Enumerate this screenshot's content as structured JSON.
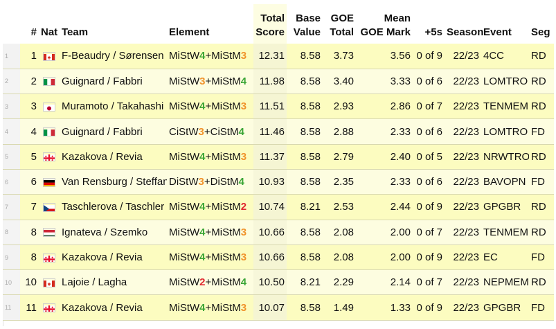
{
  "columns": {
    "rank": "#",
    "nat": "Nat",
    "team": "Team",
    "element": "Element",
    "total_line1": "Total",
    "total_line2": "Score",
    "base_line1": "Base",
    "base_line2": "Value",
    "goe_line1": "GOE",
    "goe_line2": "Total",
    "mean_line1": "Mean",
    "mean_line2": "GOE Mark",
    "plus5": "+5s",
    "season": "Season",
    "event": "Event",
    "seg": "Seg"
  },
  "rows": [
    {
      "idx": "1",
      "rank": "1",
      "nat": "CAN",
      "team": "F-Beaudry / Sørensen",
      "el1": "MiStW",
      "l1": "4",
      "el2": "MiStM",
      "l2": "3",
      "total": "12.31",
      "base": "8.58",
      "goe": "3.73",
      "mean": "3.56",
      "plus5": "0 of 9",
      "season": "22/23",
      "event": "4CC",
      "seg": "RD"
    },
    {
      "idx": "2",
      "rank": "2",
      "nat": "ITA",
      "team": "Guignard / Fabbri",
      "el1": "MiStW",
      "l1": "3",
      "el2": "MiStM",
      "l2": "4",
      "total": "11.98",
      "base": "8.58",
      "goe": "3.40",
      "mean": "3.33",
      "plus5": "0 of 6",
      "season": "22/23",
      "event": "LOMTRO",
      "seg": "RD"
    },
    {
      "idx": "3",
      "rank": "3",
      "nat": "JPN",
      "team": "Muramoto / Takahashi",
      "el1": "MiStW",
      "l1": "4",
      "el2": "MiStM",
      "l2": "3",
      "total": "11.51",
      "base": "8.58",
      "goe": "2.93",
      "mean": "2.86",
      "plus5": "0 of 7",
      "season": "22/23",
      "event": "TENMEM",
      "seg": "RD"
    },
    {
      "idx": "4",
      "rank": "4",
      "nat": "ITA",
      "team": "Guignard / Fabbri",
      "el1": "CiStW",
      "l1": "3",
      "el2": "CiStM",
      "l2": "4",
      "total": "11.46",
      "base": "8.58",
      "goe": "2.88",
      "mean": "2.33",
      "plus5": "0 of 6",
      "season": "22/23",
      "event": "LOMTRO",
      "seg": "FD"
    },
    {
      "idx": "5",
      "rank": "5",
      "nat": "GEO",
      "team": "Kazakova / Revia",
      "el1": "MiStW",
      "l1": "4",
      "el2": "MiStM",
      "l2": "3",
      "total": "11.37",
      "base": "8.58",
      "goe": "2.79",
      "mean": "2.40",
      "plus5": "0 of 5",
      "season": "22/23",
      "event": "NRWTRO",
      "seg": "RD"
    },
    {
      "idx": "6",
      "rank": "6",
      "nat": "GER",
      "team": "Van Rensburg / Steffan",
      "el1": "DiStW",
      "l1": "3",
      "el2": "DiStM",
      "l2": "4",
      "total": "10.93",
      "base": "8.58",
      "goe": "2.35",
      "mean": "2.33",
      "plus5": "0 of 6",
      "season": "22/23",
      "event": "BAVOPN",
      "seg": "FD"
    },
    {
      "idx": "7",
      "rank": "7",
      "nat": "CZE",
      "team": "Taschlerova / Taschler",
      "el1": "MiStW",
      "l1": "4",
      "el2": "MiStM",
      "l2": "2",
      "total": "10.74",
      "base": "8.21",
      "goe": "2.53",
      "mean": "2.44",
      "plus5": "0 of 9",
      "season": "22/23",
      "event": "GPGBR",
      "seg": "RD"
    },
    {
      "idx": "8",
      "rank": "8",
      "nat": "HUN",
      "team": "Ignateva / Szemko",
      "el1": "MiStW",
      "l1": "4",
      "el2": "MiStM",
      "l2": "3",
      "total": "10.66",
      "base": "8.58",
      "goe": "2.08",
      "mean": "2.00",
      "plus5": "0 of 7",
      "season": "22/23",
      "event": "TENMEM",
      "seg": "RD"
    },
    {
      "idx": "9",
      "rank": "8",
      "nat": "GEO",
      "team": "Kazakova / Revia",
      "el1": "MiStW",
      "l1": "4",
      "el2": "MiStM",
      "l2": "3",
      "total": "10.66",
      "base": "8.58",
      "goe": "2.08",
      "mean": "2.00",
      "plus5": "0 of 9",
      "season": "22/23",
      "event": "EC",
      "seg": "FD"
    },
    {
      "idx": "10",
      "rank": "10",
      "nat": "CAN",
      "team": "Lajoie / Lagha",
      "el1": "MiStW",
      "l1": "2",
      "el2": "MiStM",
      "l2": "4",
      "total": "10.50",
      "base": "8.21",
      "goe": "2.29",
      "mean": "2.14",
      "plus5": "0 of 7",
      "season": "22/23",
      "event": "NEPMEM",
      "seg": "RD"
    },
    {
      "idx": "11",
      "rank": "11",
      "nat": "GEO",
      "team": "Kazakova / Revia",
      "el1": "MiStW",
      "l1": "4",
      "el2": "MiStM",
      "l2": "3",
      "total": "10.07",
      "base": "8.58",
      "goe": "1.49",
      "mean": "1.33",
      "plus5": "0 of 9",
      "season": "22/23",
      "event": "GPGBR",
      "seg": "FD"
    }
  ]
}
